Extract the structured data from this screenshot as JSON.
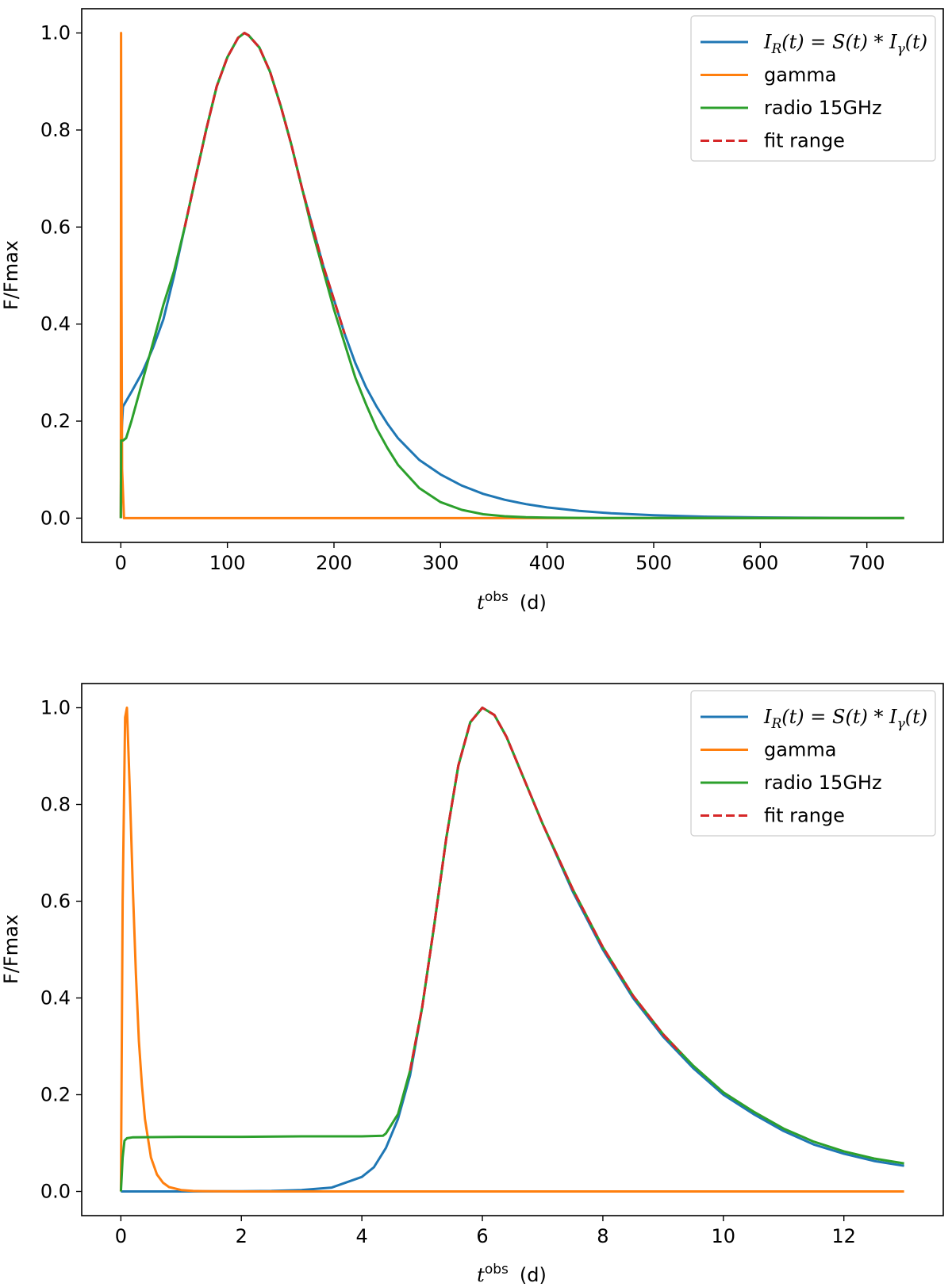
{
  "figure": {
    "panels": [
      {
        "name": "top-panel",
        "xlabel_main": "t",
        "xlabel_sup": "obs",
        "xlabel_unit": "(d)",
        "ylabel": "F/Fmax"
      },
      {
        "name": "bottom-panel",
        "xlabel_main": "t",
        "xlabel_sup": "obs",
        "xlabel_unit": "(d)",
        "ylabel": "F/Fmax"
      }
    ]
  },
  "legend": {
    "entries": [
      {
        "label_math": "I_R(t) = S(t) * I_γ(t)",
        "color": "#1f77b4",
        "style": "solid"
      },
      {
        "label": "gamma",
        "color": "#ff7f0e",
        "style": "solid"
      },
      {
        "label": "radio 15GHz",
        "color": "#2ca02c",
        "style": "solid"
      },
      {
        "label": "fit range",
        "color": "#d62728",
        "style": "dashed"
      }
    ]
  },
  "chart_data": [
    {
      "type": "line",
      "title": "",
      "xlabel": "t^obs (d)",
      "ylabel": "F/Fmax",
      "xlim": [
        -36.7,
        771.7
      ],
      "ylim": [
        -0.05,
        1.05
      ],
      "xticks": [
        0,
        100,
        200,
        300,
        400,
        500,
        600,
        700
      ],
      "yticks": [
        0.0,
        0.2,
        0.4,
        0.6,
        0.8,
        1.0
      ],
      "legend_position": "top-right",
      "series": [
        {
          "name": "I_R(t) = S(t) * I_γ(t)",
          "color": "#1f77b4",
          "x": [
            0,
            0.3,
            2,
            10,
            20,
            30,
            40,
            50,
            60,
            70,
            80,
            90,
            100,
            110,
            116,
            120,
            130,
            140,
            150,
            160,
            170,
            180,
            190,
            200,
            210,
            220,
            230,
            240,
            250,
            260,
            280,
            300,
            320,
            340,
            360,
            380,
            400,
            430,
            460,
            500,
            550,
            600,
            650,
            700,
            735
          ],
          "y": [
            0,
            0.16,
            0.23,
            0.26,
            0.3,
            0.35,
            0.41,
            0.5,
            0.6,
            0.7,
            0.8,
            0.89,
            0.95,
            0.99,
            1.0,
            0.995,
            0.97,
            0.92,
            0.85,
            0.77,
            0.68,
            0.6,
            0.52,
            0.45,
            0.38,
            0.32,
            0.27,
            0.23,
            0.195,
            0.165,
            0.12,
            0.09,
            0.067,
            0.05,
            0.038,
            0.029,
            0.022,
            0.015,
            0.01,
            0.006,
            0.003,
            0.0015,
            0.0008,
            0.0004,
            0.0002
          ]
        },
        {
          "name": "gamma",
          "color": "#ff7f0e",
          "x": [
            0,
            0.2,
            0.6,
            1.2,
            3,
            735
          ],
          "y": [
            0,
            1.0,
            0.5,
            0.1,
            0.0,
            0.0
          ]
        },
        {
          "name": "radio 15GHz",
          "color": "#2ca02c",
          "x": [
            0,
            0.3,
            2,
            5,
            10,
            20,
            30,
            40,
            50,
            60,
            70,
            80,
            90,
            100,
            110,
            116,
            120,
            130,
            140,
            150,
            160,
            170,
            180,
            190,
            200,
            210,
            220,
            230,
            240,
            250,
            260,
            280,
            300,
            320,
            340,
            360,
            380,
            400,
            430,
            460,
            500,
            550,
            600,
            650,
            700,
            735
          ],
          "y": [
            0,
            0.16,
            0.16,
            0.165,
            0.2,
            0.28,
            0.36,
            0.44,
            0.51,
            0.6,
            0.7,
            0.8,
            0.89,
            0.95,
            0.99,
            1.0,
            0.995,
            0.97,
            0.92,
            0.85,
            0.77,
            0.68,
            0.59,
            0.51,
            0.43,
            0.36,
            0.29,
            0.235,
            0.185,
            0.145,
            0.11,
            0.062,
            0.033,
            0.017,
            0.008,
            0.004,
            0.002,
            0.001,
            0.0005,
            0.0002,
            0.0001,
            0,
            0,
            0,
            0,
            0
          ]
        },
        {
          "name": "fit range",
          "color": "#d62728",
          "x": [
            60,
            70,
            80,
            90,
            100,
            110,
            116,
            120,
            130,
            140,
            150,
            160,
            170,
            180,
            190,
            200,
            210
          ],
          "y": [
            0.6,
            0.7,
            0.8,
            0.89,
            0.95,
            0.99,
            1.0,
            0.995,
            0.97,
            0.92,
            0.85,
            0.77,
            0.68,
            0.6,
            0.52,
            0.45,
            0.38
          ]
        }
      ]
    },
    {
      "type": "line",
      "title": "",
      "xlabel": "t^obs (d)",
      "ylabel": "F/Fmax",
      "xlim": [
        -0.65,
        13.65
      ],
      "ylim": [
        -0.05,
        1.05
      ],
      "xticks": [
        0,
        2,
        4,
        6,
        8,
        10,
        12
      ],
      "yticks": [
        0.0,
        0.2,
        0.4,
        0.6,
        0.8,
        1.0
      ],
      "legend_position": "top-right",
      "series": [
        {
          "name": "I_R(t) = S(t) * I_γ(t)",
          "color": "#1f77b4",
          "x": [
            0,
            0.05,
            1,
            2,
            2.5,
            3,
            3.5,
            4,
            4.2,
            4.4,
            4.6,
            4.8,
            5.0,
            5.2,
            5.4,
            5.6,
            5.8,
            6.0,
            6.2,
            6.4,
            6.6,
            6.8,
            7.0,
            7.5,
            8,
            8.5,
            9,
            9.5,
            10,
            10.5,
            11,
            11.5,
            12,
            12.5,
            13
          ],
          "y": [
            0,
            0.0,
            0.0,
            0.0005,
            0.001,
            0.003,
            0.008,
            0.03,
            0.05,
            0.09,
            0.15,
            0.24,
            0.38,
            0.55,
            0.73,
            0.88,
            0.97,
            1.0,
            0.985,
            0.94,
            0.88,
            0.82,
            0.76,
            0.62,
            0.5,
            0.4,
            0.32,
            0.255,
            0.2,
            0.16,
            0.125,
            0.097,
            0.078,
            0.063,
            0.053
          ]
        },
        {
          "name": "gamma",
          "color": "#ff7f0e",
          "x": [
            0,
            0.03,
            0.07,
            0.1,
            0.15,
            0.2,
            0.25,
            0.3,
            0.35,
            0.4,
            0.5,
            0.6,
            0.7,
            0.8,
            1.0,
            1.2,
            1.5,
            2.0,
            13
          ],
          "y": [
            0,
            0.6,
            0.98,
            1.0,
            0.82,
            0.62,
            0.45,
            0.31,
            0.22,
            0.15,
            0.07,
            0.035,
            0.018,
            0.009,
            0.003,
            0.001,
            0.0003,
            0.0,
            0.0
          ]
        },
        {
          "name": "radio 15GHz",
          "color": "#2ca02c",
          "x": [
            0,
            0.03,
            0.06,
            0.1,
            0.2,
            1,
            2,
            3,
            4,
            4.35,
            4.4,
            4.6,
            4.8,
            5.0,
            5.2,
            5.4,
            5.6,
            5.8,
            6.0,
            6.2,
            6.4,
            6.6,
            6.8,
            7.0,
            7.5,
            8,
            8.5,
            9,
            9.5,
            10,
            10.5,
            11,
            11.5,
            12,
            12.5,
            13
          ],
          "y": [
            0,
            0.07,
            0.105,
            0.11,
            0.112,
            0.113,
            0.113,
            0.114,
            0.114,
            0.115,
            0.12,
            0.16,
            0.25,
            0.38,
            0.55,
            0.73,
            0.88,
            0.97,
            1.0,
            0.985,
            0.94,
            0.88,
            0.82,
            0.76,
            0.625,
            0.505,
            0.405,
            0.325,
            0.26,
            0.205,
            0.165,
            0.13,
            0.103,
            0.083,
            0.068,
            0.058
          ]
        },
        {
          "name": "fit range",
          "color": "#d62728",
          "x": [
            4.8,
            5.0,
            5.2,
            5.4,
            5.6,
            5.8,
            6.0,
            6.2,
            6.4,
            6.6,
            6.8,
            7.0,
            7.5,
            8,
            8.5,
            9,
            9.3
          ],
          "y": [
            0.25,
            0.38,
            0.55,
            0.73,
            0.88,
            0.97,
            1.0,
            0.985,
            0.94,
            0.88,
            0.82,
            0.76,
            0.625,
            0.505,
            0.405,
            0.325,
            0.285
          ]
        }
      ]
    }
  ]
}
